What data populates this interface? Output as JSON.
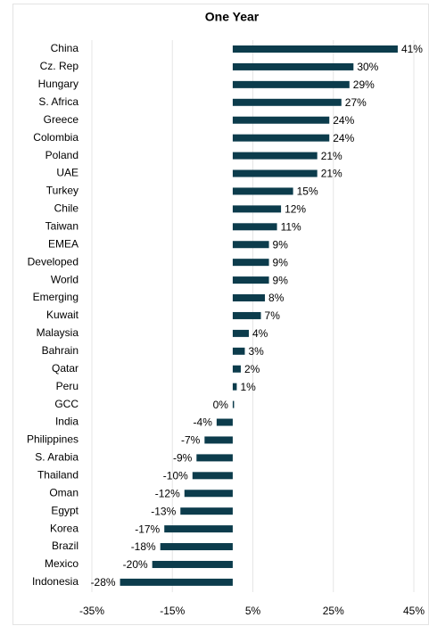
{
  "chart_data": {
    "type": "barh",
    "title": "One Year",
    "categories": [
      "China",
      "Cz. Rep",
      "Hungary",
      "S. Africa",
      "Greece",
      "Colombia",
      "Poland",
      "UAE",
      "Turkey",
      "Chile",
      "Taiwan",
      "EMEA",
      "Developed",
      "World",
      "Emerging",
      "Kuwait",
      "Malaysia",
      "Bahrain",
      "Qatar",
      "Peru",
      "GCC",
      "India",
      "Philippines",
      "S. Arabia",
      "Thailand",
      "Oman",
      "Egypt",
      "Korea",
      "Brazil",
      "Mexico",
      "Indonesia"
    ],
    "values": [
      41,
      30,
      29,
      27,
      24,
      24,
      21,
      21,
      15,
      12,
      11,
      9,
      9,
      9,
      8,
      7,
      4,
      3,
      2,
      1,
      0,
      -4,
      -7,
      -9,
      -10,
      -12,
      -13,
      -17,
      -18,
      -20,
      -28
    ],
    "value_labels": [
      "41%",
      "30%",
      "29%",
      "27%",
      "24%",
      "24%",
      "21%",
      "21%",
      "15%",
      "12%",
      "11%",
      "9%",
      "9%",
      "9%",
      "8%",
      "7%",
      "4%",
      "3%",
      "2%",
      "1%",
      "0%",
      "-4%",
      "-7%",
      "-9%",
      "-10%",
      "-12%",
      "-13%",
      "-17%",
      "-18%",
      "-20%",
      "-28%"
    ],
    "color": "#0c3c4c",
    "xlim": [
      -35,
      45
    ],
    "xticks": [
      {
        "value": -35,
        "label": "-35%"
      },
      {
        "value": -15,
        "label": "-15%"
      },
      {
        "value": 5,
        "label": "5%"
      },
      {
        "value": 25,
        "label": "25%"
      },
      {
        "value": 45,
        "label": "45%"
      }
    ],
    "grid": true
  }
}
